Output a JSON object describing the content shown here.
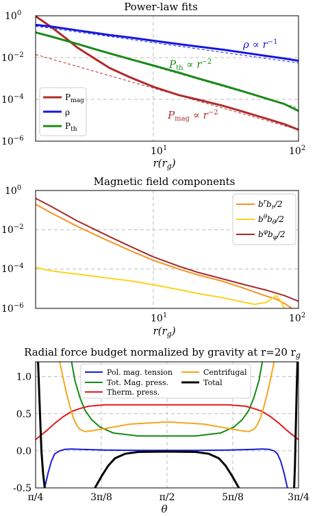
{
  "chart_data": [
    {
      "type": "line",
      "title": "Power-law fits",
      "xlabel": "r(r_g)",
      "ylabel": "",
      "xscale": "log",
      "yscale": "log",
      "xlim": [
        1.55,
        100
      ],
      "ylim": [
        1e-06,
        1
      ],
      "x_ticks": [
        {
          "v": 10,
          "label": "10^1"
        },
        {
          "v": 100,
          "label": "10^2"
        }
      ],
      "y_ticks": [
        {
          "v": 1,
          "label": "10^0"
        },
        {
          "v": 0.01,
          "label": "10^-2"
        },
        {
          "v": 0.0001,
          "label": "10^-4"
        },
        {
          "v": 1e-06,
          "label": "10^-6"
        }
      ],
      "grid": true,
      "legend_position": "lower-left",
      "series": [
        {
          "name": "P_mag",
          "color": "#b22a2a",
          "x": [
            1.55,
            2,
            2.5,
            3,
            4,
            5,
            7,
            10,
            15,
            20,
            30,
            40,
            60,
            80,
            100
          ],
          "y": [
            0.95,
            0.28,
            0.085,
            0.03,
            0.0085,
            0.0032,
            0.0011,
            0.0004,
            0.00016,
            0.0001,
            5e-05,
            2.8e-05,
            1.2e-05,
            6.5e-06,
            3.5e-06
          ]
        },
        {
          "name": "ρ",
          "color": "#1515e0",
          "x": [
            1.55,
            2,
            3,
            4,
            5,
            7,
            10,
            15,
            20,
            30,
            40,
            60,
            80,
            100
          ],
          "y": [
            0.37,
            0.3,
            0.2,
            0.15,
            0.12,
            0.09,
            0.064,
            0.044,
            0.034,
            0.024,
            0.018,
            0.012,
            0.009,
            0.007
          ]
        },
        {
          "name": "P_th",
          "color": "#1a8a1a",
          "x": [
            1.55,
            2,
            3,
            4,
            5,
            7,
            10,
            15,
            20,
            30,
            40,
            60,
            80,
            100
          ],
          "y": [
            0.16,
            0.1,
            0.045,
            0.025,
            0.016,
            0.0082,
            0.0042,
            0.0019,
            0.00105,
            0.00047,
            0.00026,
            0.00011,
            6e-05,
            2.8e-05
          ]
        }
      ],
      "fits": [
        {
          "label": "ρ ∝ r^-1",
          "color": "#1515e0",
          "x": [
            1.55,
            100
          ],
          "y": [
            0.32,
            0.0055
          ]
        },
        {
          "label": "P_th ∝ r^-2",
          "color": "#1a8a1a",
          "x": [
            1.55,
            100
          ],
          "y": [
            0.16,
            3.8e-05
          ]
        },
        {
          "label": "P_mag ∝ r^-2",
          "color": "#b22a2a",
          "x": [
            1.55,
            100
          ],
          "y": [
            0.014,
            3.5e-06
          ]
        }
      ]
    },
    {
      "type": "line",
      "title": "Magnetic field components",
      "xlabel": "r(r_g)",
      "ylabel": "",
      "xscale": "log",
      "yscale": "log",
      "xlim": [
        1.55,
        100
      ],
      "ylim": [
        1e-06,
        1
      ],
      "x_ticks": [
        {
          "v": 10,
          "label": "10^1"
        },
        {
          "v": 100,
          "label": "10^2"
        }
      ],
      "y_ticks": [
        {
          "v": 1,
          "label": "10^0"
        },
        {
          "v": 0.01,
          "label": "10^-2"
        },
        {
          "v": 0.0001,
          "label": "10^-4"
        },
        {
          "v": 1e-06,
          "label": "10^-6"
        }
      ],
      "grid": true,
      "legend_position": "top-right",
      "series": [
        {
          "name": "b^r b_r/2",
          "color": "#f5921e",
          "x": [
            1.55,
            2,
            3,
            4,
            5,
            7,
            10,
            15,
            20,
            30,
            40,
            60,
            70,
            80,
            90
          ],
          "y": [
            0.2,
            0.07,
            0.015,
            0.0055,
            0.0026,
            0.00085,
            0.00028,
            0.0001,
            5.2e-05,
            2.4e-05,
            1.2e-05,
            4.2e-06,
            3e-06,
            1.8e-06,
            1e-06
          ]
        },
        {
          "name": "b^θ b_θ/2",
          "color": "#ffd21a",
          "x": [
            1.55,
            2,
            3,
            4,
            5,
            7,
            10,
            15,
            20,
            30,
            40,
            50,
            60,
            70,
            75,
            80
          ],
          "y": [
            0.00012,
            8e-05,
            5.5e-05,
            4.2e-05,
            3.4e-05,
            2.5e-05,
            1.6e-05,
            9e-06,
            5.8e-06,
            3.5e-06,
            2.2e-06,
            1.6e-06,
            2e-06,
            4.5e-06,
            2.5e-06,
            1e-06
          ]
        },
        {
          "name": "b^φ b_φ/2",
          "color": "#a52a2a",
          "x": [
            1.55,
            2,
            3,
            4,
            5,
            7,
            10,
            15,
            20,
            30,
            40,
            60,
            80,
            100
          ],
          "y": [
            0.4,
            0.15,
            0.028,
            0.01,
            0.0045,
            0.0014,
            0.00042,
            0.00014,
            7e-05,
            3.2e-05,
            1.8e-05,
            8.5e-06,
            4.5e-06,
            2.3e-06
          ]
        }
      ]
    },
    {
      "type": "line",
      "title": "Radial force budget normalized by gravity at r=20 r_g",
      "xlabel": "θ",
      "ylabel": "",
      "xlim": [
        0.785398,
        2.356194
      ],
      "ylim": [
        -0.5,
        1.2
      ],
      "x_ticks": [
        {
          "v": 0.785398,
          "label": "π/4"
        },
        {
          "v": 1.178097,
          "label": "3π/8"
        },
        {
          "v": 1.570796,
          "label": "π/2"
        },
        {
          "v": 1.963495,
          "label": "5π/8"
        },
        {
          "v": 2.356194,
          "label": "3π/4"
        }
      ],
      "y_ticks": [
        {
          "v": 1.0,
          "label": "1.0"
        },
        {
          "v": 0.5,
          "label": "0.5"
        },
        {
          "v": 0.0,
          "label": "0.0"
        },
        {
          "v": -0.5,
          "label": "-0.5"
        }
      ],
      "grid": true,
      "legend_position": "top",
      "series": [
        {
          "name": "Pol. mag. tension",
          "color": "#1a1adc",
          "x": [
            0.84,
            0.86,
            0.88,
            0.9,
            0.93,
            0.96,
            1.0,
            1.05,
            1.2,
            1.4,
            1.57,
            1.74,
            1.94,
            2.09,
            2.14,
            2.18,
            2.21,
            2.23,
            2.25,
            2.27,
            2.29
          ],
          "y": [
            -0.5,
            -0.3,
            -0.14,
            -0.04,
            0.0,
            0.02,
            0.025,
            0.02,
            0.01,
            0.005,
            0.005,
            0.005,
            0.01,
            0.02,
            0.025,
            0.02,
            0.0,
            -0.04,
            -0.14,
            -0.3,
            -0.5
          ]
        },
        {
          "name": "Tot. Mag. press.",
          "color": "#138a13",
          "x": [
            1.0,
            1.02,
            1.05,
            1.08,
            1.12,
            1.17,
            1.25,
            1.4,
            1.57,
            1.74,
            1.89,
            1.97,
            2.02,
            2.06,
            2.09,
            2.12,
            2.14
          ],
          "y": [
            1.2,
            0.95,
            0.72,
            0.55,
            0.42,
            0.32,
            0.24,
            0.2,
            0.2,
            0.2,
            0.24,
            0.32,
            0.42,
            0.55,
            0.72,
            0.95,
            1.2
          ]
        },
        {
          "name": "Therm. press.",
          "color": "#e01a1a",
          "x": [
            0.785,
            0.85,
            0.9,
            0.95,
            1.0,
            1.05,
            1.1,
            1.2,
            1.57,
            1.94,
            2.04,
            2.09,
            2.14,
            2.19,
            2.24,
            2.29,
            2.356
          ],
          "y": [
            0.15,
            0.27,
            0.37,
            0.46,
            0.53,
            0.57,
            0.6,
            0.62,
            0.62,
            0.62,
            0.6,
            0.57,
            0.53,
            0.46,
            0.37,
            0.27,
            0.15
          ]
        },
        {
          "name": "Centrifugal",
          "color": "#f5a51e",
          "x": [
            0.93,
            0.95,
            0.97,
            0.99,
            1.01,
            1.03,
            1.05,
            1.08,
            1.12,
            1.2,
            1.35,
            1.57,
            1.79,
            1.94,
            2.02,
            2.06,
            2.09,
            2.11,
            2.13,
            2.15,
            2.17,
            2.19,
            2.21
          ],
          "y": [
            1.2,
            0.98,
            0.78,
            0.6,
            0.45,
            0.35,
            0.29,
            0.26,
            0.27,
            0.3,
            0.36,
            0.39,
            0.36,
            0.3,
            0.27,
            0.26,
            0.29,
            0.35,
            0.45,
            0.6,
            0.78,
            0.98,
            1.2
          ]
        },
        {
          "name": "Total",
          "color": "#000000",
          "x": [
            0.8,
            0.81,
            0.82,
            0.83,
            0.84
          ],
          "y": [
            1.2,
            0.6,
            0.0,
            -0.3,
            -0.5
          ]
        },
        {
          "name": "",
          "color": "#000000",
          "x": [
            1.14,
            1.18,
            1.22,
            1.26,
            1.32,
            1.4,
            1.57,
            1.74,
            1.82,
            1.88,
            1.92,
            1.96,
            2.0
          ],
          "y": [
            -0.5,
            -0.34,
            -0.2,
            -0.1,
            -0.04,
            -0.015,
            -0.01,
            -0.015,
            -0.04,
            -0.1,
            -0.2,
            -0.34,
            -0.5
          ]
        },
        {
          "name": "",
          "color": "#000000",
          "x": [
            2.33,
            2.335,
            2.34,
            2.345,
            2.35
          ],
          "y": [
            -0.5,
            -0.2,
            0.3,
            0.8,
            1.2
          ]
        }
      ]
    }
  ]
}
